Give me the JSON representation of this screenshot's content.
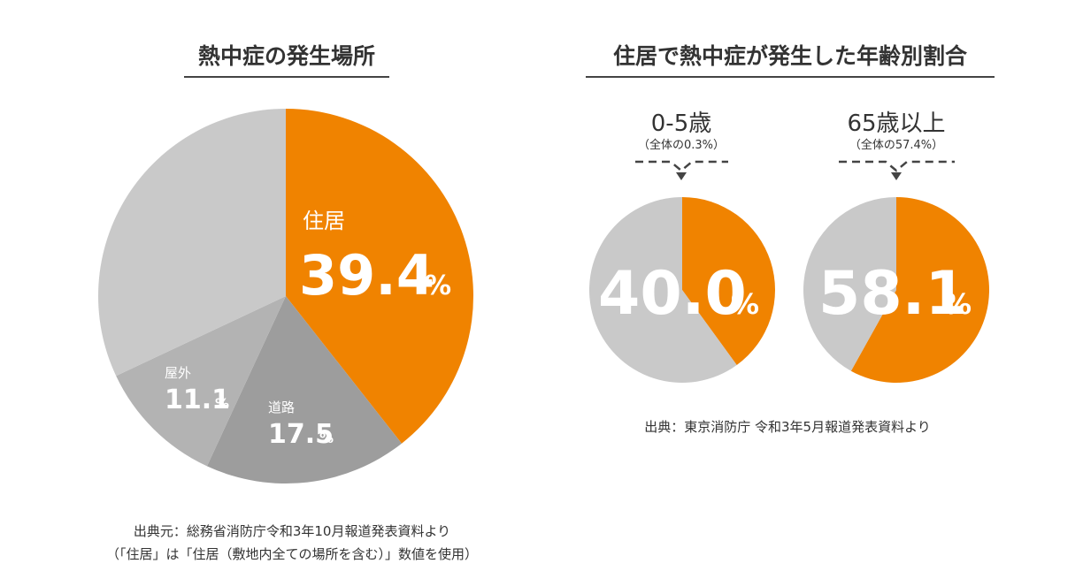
{
  "left": {
    "title": "熱中症の発生場所",
    "source_line1": "出典元：総務省消防庁令和3年10月報道発表資料より",
    "source_line2": "（「住居」は「住居（敷地内全ての場所を含む）」数値を使用）"
  },
  "right": {
    "title": "住居で熱中症が発生した年齢別割合",
    "source": "出典：東京消防庁 令和3年5月報道発表資料より"
  },
  "colors": {
    "orange": "#f08300",
    "gray_dark": "#9d9d9d",
    "gray_mid": "#b3b3b3",
    "gray_light": "#c9c9c9"
  },
  "chart_data": [
    {
      "type": "pie",
      "title": "熱中症の発生場所",
      "slices": [
        {
          "label": "住居",
          "value": 39.4,
          "display": "39.4",
          "unit": "%",
          "color": "#f08300"
        },
        {
          "label": "道路",
          "value": 17.5,
          "display": "17.5",
          "unit": "%",
          "color": "#9d9d9d"
        },
        {
          "label": "屋外",
          "value": 11.1,
          "display": "11.1",
          "unit": "%",
          "color": "#b3b3b3"
        },
        {
          "label": "",
          "value": 32.0,
          "display": "",
          "unit": "",
          "color": "#c9c9c9"
        }
      ]
    },
    {
      "type": "pie",
      "title": "0-5歳",
      "subtitle": "（全体の0.3%）",
      "big_label": "40.0",
      "unit": "%",
      "slices": [
        {
          "label": "",
          "value": 40.0,
          "color": "#f08300"
        },
        {
          "label": "",
          "value": 60.0,
          "color": "#c9c9c9"
        }
      ]
    },
    {
      "type": "pie",
      "title": "65歳以上",
      "subtitle": "（全体の57.4%）",
      "big_label": "58.1",
      "unit": "%",
      "slices": [
        {
          "label": "",
          "value": 58.1,
          "color": "#f08300"
        },
        {
          "label": "",
          "value": 41.9,
          "color": "#c9c9c9"
        }
      ]
    }
  ]
}
